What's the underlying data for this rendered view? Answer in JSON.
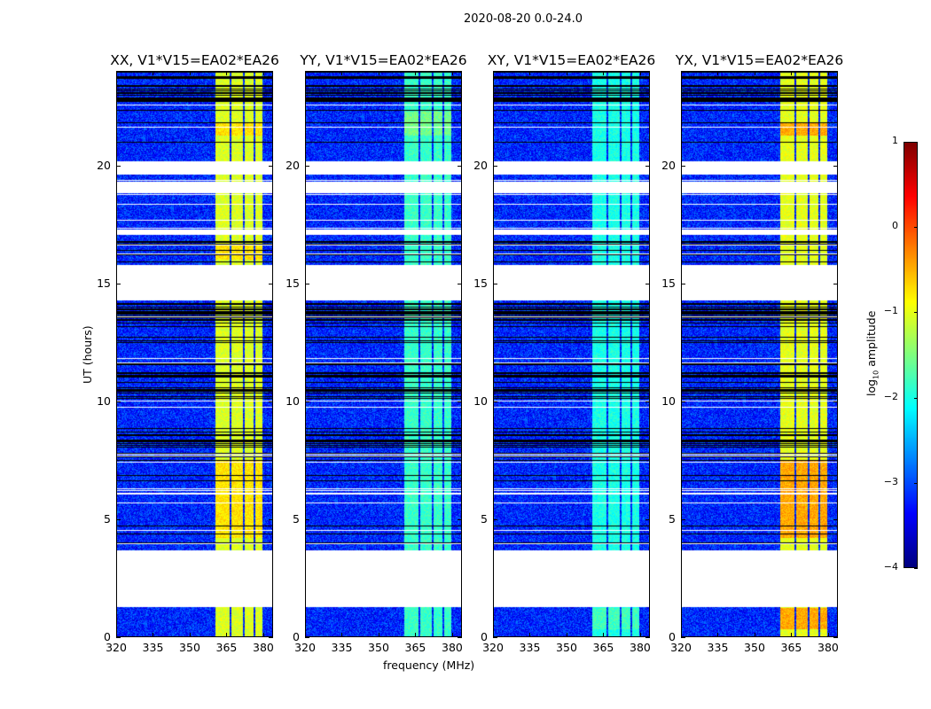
{
  "chart_data": {
    "type": "heatmap",
    "title": "2020-08-20 0.0-24.0",
    "xlabel": "frequency (MHz)",
    "ylabel": "UT (hours)",
    "xlim": [
      320,
      384
    ],
    "ylim": [
      0,
      24
    ],
    "xticks": [
      320,
      335,
      350,
      365,
      380
    ],
    "yticks": [
      0,
      5,
      10,
      15,
      20
    ],
    "colormap": "jet",
    "colorbar": {
      "label_prefix": "log",
      "label_sub": "10",
      "label_suffix": " amplitude",
      "clim": [
        -4,
        1
      ],
      "ticks": [
        1,
        0,
        -1,
        -2,
        -3,
        -4
      ]
    },
    "flagged_ut_ranges": [
      [
        1.3,
        3.7
      ],
      [
        14.3,
        15.8
      ],
      [
        18.85,
        19.35
      ],
      [
        19.65,
        20.2
      ],
      [
        17.1,
        17.3
      ]
    ],
    "dense_flag_ut_ranges": [
      [
        7.5,
        9.0
      ],
      [
        10.0,
        11.3
      ],
      [
        12.5,
        14.2
      ],
      [
        16.0,
        17.0
      ],
      [
        22.5,
        24.0
      ]
    ],
    "bright_band_mhz": [
      360.5,
      380
    ],
    "band_gaps_mhz": [
      [
        366.5,
        367.3
      ],
      [
        372.0,
        372.8
      ],
      [
        376.4,
        377.2
      ]
    ],
    "background_level": -3.2,
    "panels": [
      {
        "title": "XX, V1*V15=EA02*EA26",
        "band_level": -1.05,
        "bright_ut": [
          [
            4.2,
            7.5
          ],
          [
            21.3,
            21.8
          ],
          [
            16.0,
            16.7
          ]
        ],
        "bright_level": -0.75
      },
      {
        "title": "YY, V1*V15=EA02*EA26",
        "band_level": -1.85,
        "bright_ut": [
          [
            21.3,
            22.3
          ]
        ],
        "bright_level": -1.55
      },
      {
        "title": "XY, V1*V15=EA02*EA26",
        "band_level": -2.0,
        "bright_ut": [
          [
            0.3,
            1.2
          ]
        ],
        "bright_level": -1.8
      },
      {
        "title": "YX, V1*V15=EA02*EA26",
        "band_level": -1.0,
        "bright_ut": [
          [
            21.3,
            21.8
          ],
          [
            4.2,
            7.5
          ],
          [
            0.3,
            1.2
          ]
        ],
        "bright_level": -0.45
      }
    ]
  }
}
